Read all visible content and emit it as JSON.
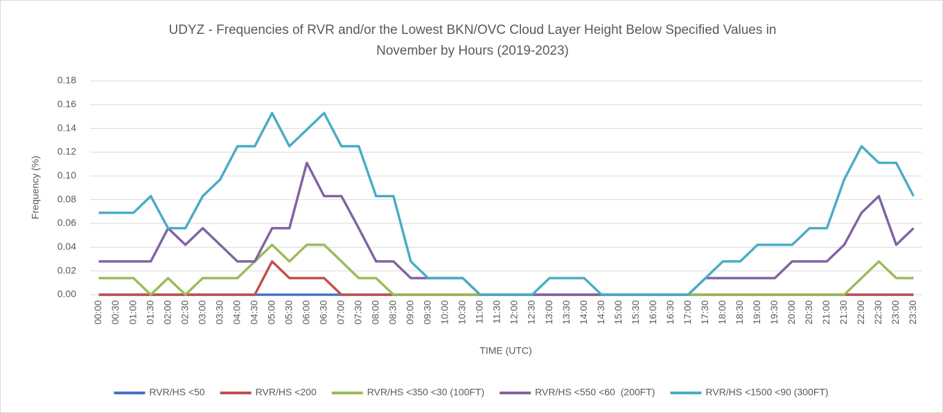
{
  "chart_data": {
    "type": "line",
    "title": [
      "UDYZ - Frequencies of RVR and/or the Lowest BKN/OVC Cloud Layer Height Below Specified Values in",
      "November by Hours (2019-2023)"
    ],
    "x_label": "TIME (UTC)",
    "y_label": "Frequency (%)",
    "categories": [
      "00:00",
      "00:30",
      "01:00",
      "01:30",
      "02:00",
      "02:30",
      "03:00",
      "03:30",
      "04:00",
      "04:30",
      "05:00",
      "05:30",
      "06:00",
      "06:30",
      "07:00",
      "07:30",
      "08:00",
      "08:30",
      "09:00",
      "09:30",
      "10:00",
      "10:30",
      "11:00",
      "11:30",
      "12:00",
      "12:30",
      "13:00",
      "13:30",
      "14:00",
      "14:30",
      "15:00",
      "15:30",
      "16:00",
      "16:30",
      "17:00",
      "17:30",
      "18:00",
      "18:30",
      "19:00",
      "19:30",
      "20:00",
      "20:30",
      "21:00",
      "21:30",
      "22:00",
      "22:30",
      "23:00",
      "23:30"
    ],
    "series": [
      {
        "name": "RVR/HS <50",
        "color": "#4472c4",
        "values": [
          0,
          0,
          0,
          0,
          0,
          0,
          0,
          0,
          0,
          0,
          0,
          0,
          0,
          0,
          0,
          0,
          0,
          0,
          0,
          0,
          0,
          0,
          0,
          0,
          0,
          0,
          0,
          0,
          0,
          0,
          0,
          0,
          0,
          0,
          0,
          0,
          0,
          0,
          0,
          0,
          0,
          0,
          0,
          0,
          0,
          0,
          0,
          0
        ]
      },
      {
        "name": "RVR/HS <200",
        "color": "#c0504d",
        "values": [
          0,
          0,
          0,
          0,
          0,
          0,
          0,
          0,
          0,
          0,
          0.028,
          0.014,
          0.014,
          0.014,
          0,
          0,
          0,
          0,
          0,
          0,
          0,
          0,
          0,
          0,
          0,
          0,
          0,
          0,
          0,
          0,
          0,
          0,
          0,
          0,
          0,
          0,
          0,
          0,
          0,
          0,
          0,
          0,
          0,
          0,
          0,
          0,
          0,
          0
        ]
      },
      {
        "name": "RVR/HS <350 <30 (100FT)",
        "color": "#9bbb59",
        "values": [
          0.014,
          0.014,
          0.014,
          0,
          0.014,
          0,
          0.014,
          0.014,
          0.014,
          0.028,
          0.042,
          0.028,
          0.042,
          0.042,
          0.028,
          0.014,
          0.014,
          0,
          0,
          0,
          0,
          0,
          0,
          0,
          0,
          0,
          0,
          0,
          0,
          0,
          0,
          0,
          0,
          0,
          0,
          0,
          0,
          0,
          0,
          0,
          0,
          0,
          0,
          0,
          0.014,
          0.028,
          0.014,
          0.014
        ]
      },
      {
        "name": "RVR/HS <550 <60  (200FT)",
        "color": "#8064a2",
        "values": [
          0.028,
          0.028,
          0.028,
          0.028,
          0.056,
          0.042,
          0.056,
          0.042,
          0.028,
          0.028,
          0.056,
          0.056,
          0.111,
          0.083,
          0.083,
          0.056,
          0.028,
          0.028,
          0.014,
          0.014,
          0.014,
          0.014,
          0,
          0,
          0,
          0,
          0,
          0,
          0,
          0,
          0,
          0,
          0,
          0,
          0,
          0.014,
          0.014,
          0.014,
          0.014,
          0.014,
          0.028,
          0.028,
          0.028,
          0.042,
          0.069,
          0.083,
          0.042,
          0.056
        ]
      },
      {
        "name": "RVR/HS <1500 <90 (300FT)",
        "color": "#4bacc6",
        "values": [
          0.069,
          0.069,
          0.069,
          0.083,
          0.056,
          0.056,
          0.083,
          0.097,
          0.125,
          0.125,
          0.153,
          0.125,
          0.139,
          0.153,
          0.125,
          0.125,
          0.083,
          0.083,
          0.028,
          0.014,
          0.014,
          0.014,
          0,
          0,
          0,
          0,
          0.014,
          0.014,
          0.014,
          0,
          0,
          0,
          0,
          0,
          0,
          0.014,
          0.028,
          0.028,
          0.042,
          0.042,
          0.042,
          0.056,
          0.056,
          0.097,
          0.125,
          0.111,
          0.111,
          0.083
        ]
      }
    ],
    "ylim": [
      0,
      0.18
    ],
    "yticks": [
      {
        "value": 0,
        "label": "0.00"
      },
      {
        "value": 0.02,
        "label": "0.02"
      },
      {
        "value": 0.04,
        "label": "0.04"
      },
      {
        "value": 0.06,
        "label": "0.06"
      },
      {
        "value": 0.08,
        "label": "0.08"
      },
      {
        "value": 0.1,
        "label": "0.10"
      },
      {
        "value": 0.12,
        "label": "0.12"
      },
      {
        "value": 0.14,
        "label": "0.14"
      },
      {
        "value": 0.16,
        "label": "0.16"
      },
      {
        "value": 0.18,
        "label": "0.18"
      }
    ],
    "grid": true,
    "legend": "bottom"
  }
}
